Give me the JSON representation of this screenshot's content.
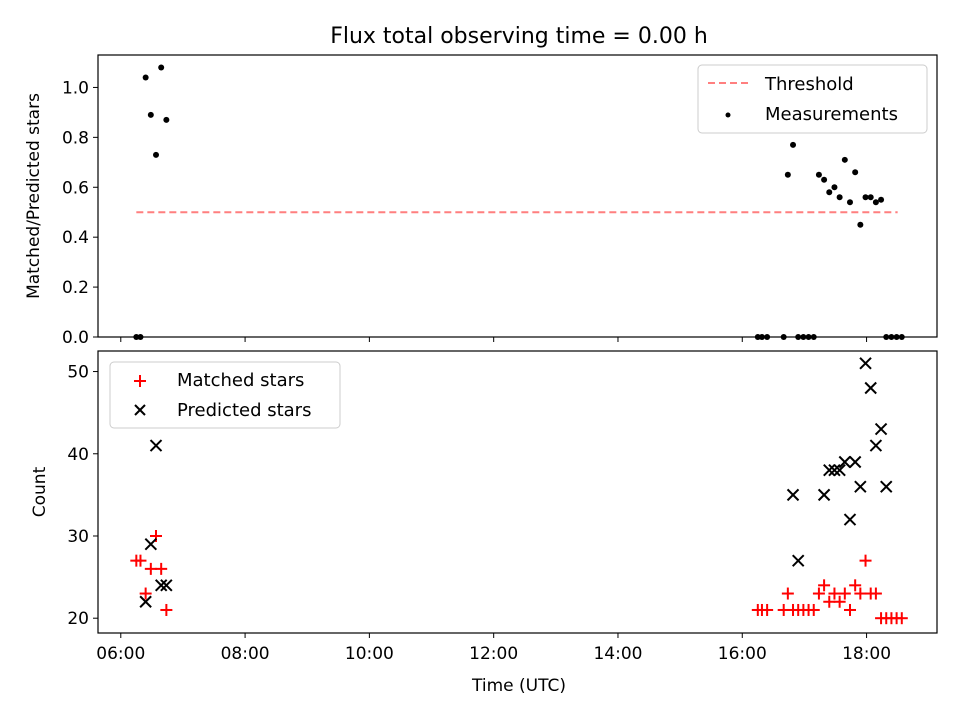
{
  "chart_data": [
    {
      "type": "scatter",
      "title": "Flux total observing time = 0.00 h",
      "xlabel": "",
      "ylabel": "Matched/Predicted stars",
      "xlim": [
        "05:38",
        "19:08"
      ],
      "ylim": [
        0,
        1.13
      ],
      "yticks": [
        0.0,
        0.2,
        0.4,
        0.6,
        0.8,
        1.0
      ],
      "ytick_labels": [
        "0.0",
        "0.2",
        "0.4",
        "0.6",
        "0.8",
        "1.0"
      ],
      "xticks": [
        "06:00",
        "08:00",
        "10:00",
        "12:00",
        "14:00",
        "16:00",
        "18:00"
      ],
      "grid": false,
      "legend_position": "top-right",
      "colors": {
        "threshold": "#ff7f7f",
        "measurements": "#000000"
      },
      "series": [
        {
          "name": "Threshold",
          "kind": "dashed-line",
          "x": [
            "06:15",
            "18:30"
          ],
          "y": [
            0.5,
            0.5
          ]
        },
        {
          "name": "Measurements",
          "kind": "points",
          "x": [
            "06:15",
            "06:19",
            "06:24",
            "06:29",
            "06:34",
            "06:39",
            "06:44",
            "16:15",
            "16:19",
            "16:24",
            "16:40",
            "16:44",
            "16:49",
            "16:54",
            "16:59",
            "17:04",
            "17:09",
            "17:14",
            "17:19",
            "17:24",
            "17:29",
            "17:34",
            "17:39",
            "17:44",
            "17:49",
            "17:54",
            "17:59",
            "18:04",
            "18:09",
            "18:14",
            "18:19",
            "18:24",
            "18:29",
            "18:34"
          ],
          "y": [
            0,
            0,
            1.04,
            0.89,
            0.73,
            1.08,
            0.87,
            0,
            0,
            0,
            0,
            0.65,
            0.77,
            0,
            0,
            0,
            0,
            0.65,
            0.63,
            0.58,
            0.6,
            0.56,
            0.71,
            0.54,
            0.66,
            0.45,
            0.56,
            0.56,
            0.54,
            0.55,
            0,
            0,
            0,
            0
          ]
        }
      ]
    },
    {
      "type": "scatter",
      "title": "",
      "xlabel": "Time (UTC)",
      "ylabel": "Count",
      "xlim": [
        "05:38",
        "19:08"
      ],
      "ylim": [
        18.2,
        52.5
      ],
      "yticks": [
        20,
        30,
        40,
        50
      ],
      "ytick_labels": [
        "20",
        "30",
        "40",
        "50"
      ],
      "xticks": [
        "06:00",
        "08:00",
        "10:00",
        "12:00",
        "14:00",
        "16:00",
        "18:00"
      ],
      "xtick_labels": [
        "06:00",
        "08:00",
        "10:00",
        "12:00",
        "14:00",
        "16:00",
        "18:00"
      ],
      "grid": false,
      "legend_position": "top-left",
      "colors": {
        "matched": "#ff0000",
        "predicted": "#000000"
      },
      "series": [
        {
          "name": "Matched stars",
          "marker": "+",
          "x": [
            "06:15",
            "06:19",
            "06:24",
            "06:29",
            "06:34",
            "06:39",
            "06:44",
            "16:15",
            "16:19",
            "16:24",
            "16:40",
            "16:44",
            "16:49",
            "16:54",
            "16:59",
            "17:04",
            "17:09",
            "17:14",
            "17:19",
            "17:24",
            "17:29",
            "17:34",
            "17:39",
            "17:44",
            "17:49",
            "17:54",
            "17:59",
            "18:04",
            "18:09",
            "18:14",
            "18:19",
            "18:24",
            "18:29",
            "18:34"
          ],
          "y": [
            27,
            27,
            23,
            26,
            30,
            26,
            21,
            21,
            21,
            21,
            21,
            23,
            21,
            21,
            21,
            21,
            21,
            23,
            24,
            22,
            23,
            22,
            23,
            21,
            24,
            23,
            27,
            23,
            23,
            20,
            20,
            20,
            20,
            20
          ]
        },
        {
          "name": "Predicted stars",
          "marker": "x",
          "x": [
            "06:24",
            "06:29",
            "06:34",
            "06:39",
            "06:44",
            "16:49",
            "16:54",
            "17:19",
            "17:24",
            "17:29",
            "17:34",
            "17:39",
            "17:44",
            "17:49",
            "17:54",
            "17:59",
            "18:04",
            "18:09",
            "18:14",
            "18:19"
          ],
          "y": [
            22,
            29,
            41,
            24,
            24,
            35,
            27,
            35,
            38,
            38,
            38,
            39,
            32,
            39,
            36,
            51,
            48,
            41,
            43,
            36
          ]
        }
      ]
    }
  ]
}
